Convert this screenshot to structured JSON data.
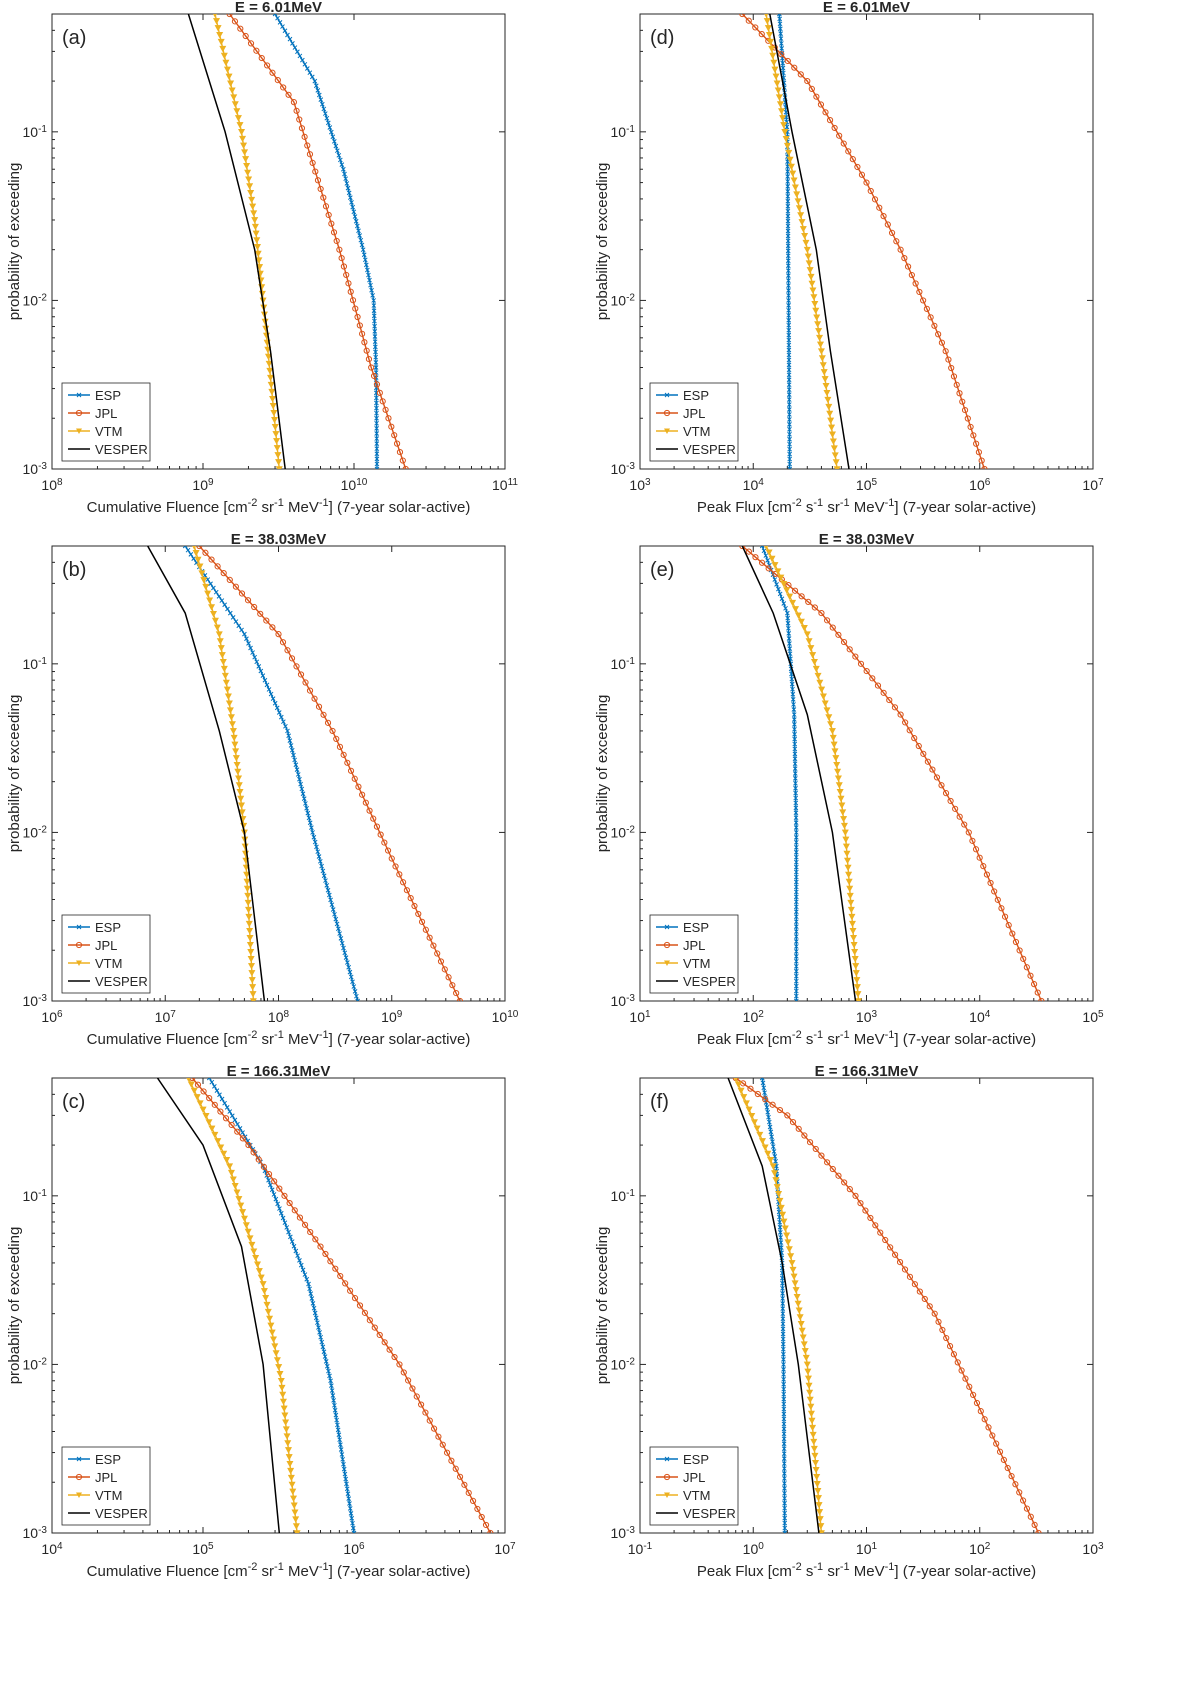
{
  "figure": {
    "ylabel": "probability of exceeding",
    "y_ticks": [
      {
        "value": 0.001,
        "base": "10",
        "exp": "-3"
      },
      {
        "value": 0.01,
        "base": "10",
        "exp": "-2"
      },
      {
        "value": 0.1,
        "base": "10",
        "exp": "-1"
      }
    ],
    "legend": [
      "ESP",
      "JPL",
      "VTM",
      "VESPER"
    ],
    "colors": {
      "ESP": "#0072bd",
      "JPL": "#d95319",
      "VTM": "#edb120",
      "VESPER": "#000000"
    },
    "xlabel_fluence": {
      "pre": "Cumulative Fluence [cm",
      "sup1": "-2",
      "mid1": " sr",
      "sup2": "-1",
      "mid2": " MeV",
      "sup3": "-1",
      "post": "] (7-year solar-active)"
    },
    "xlabel_flux": {
      "pre": "Peak Flux [cm",
      "sup1": "-2",
      "mid1": " s",
      "sup2": "-1",
      "mid2": " sr",
      "sup3": "-1",
      "mid3": " MeV",
      "sup4": "-1",
      "post": "] (7-year solar-active)"
    }
  },
  "chart_data": [
    {
      "type": "line",
      "panel": "(a)",
      "title": "E = 6.01MeV",
      "xlabel_kind": "fluence",
      "xlim_exp": [
        8,
        11
      ],
      "ylim": [
        0.001,
        0.5
      ],
      "series": [
        {
          "name": "ESP",
          "points": [
            [
              3000000000.0,
              0.5
            ],
            [
              5500000000.0,
              0.2
            ],
            [
              8500000000.0,
              0.06
            ],
            [
              11500000000.0,
              0.02
            ],
            [
              13500000000.0,
              0.01
            ],
            [
              14000000000.0,
              0.004
            ],
            [
              14200000000.0,
              0.001
            ]
          ]
        },
        {
          "name": "JPL",
          "points": [
            [
              1500000000.0,
              0.5
            ],
            [
              4000000000.0,
              0.15
            ],
            [
              8000000000.0,
              0.02
            ],
            [
              13000000000.0,
              0.004
            ],
            [
              22000000000.0,
              0.001
            ]
          ]
        },
        {
          "name": "VTM",
          "points": [
            [
              1200000000.0,
              0.5
            ],
            [
              1800000000.0,
              0.1
            ],
            [
              2200000000.0,
              0.03
            ],
            [
              2500000000.0,
              0.01
            ],
            [
              3200000000.0,
              0.001
            ]
          ]
        },
        {
          "name": "VESPER",
          "points": [
            [
              800000000.0,
              0.5
            ],
            [
              1400000000.0,
              0.1
            ],
            [
              2200000000.0,
              0.02
            ],
            [
              2800000000.0,
              0.005
            ],
            [
              3500000000.0,
              0.001
            ]
          ]
        }
      ]
    },
    {
      "type": "line",
      "panel": "(d)",
      "title": "E = 6.01MeV",
      "xlabel_kind": "flux",
      "xlim_exp": [
        3,
        7
      ],
      "ylim": [
        0.001,
        0.5
      ],
      "series": [
        {
          "name": "ESP",
          "points": [
            [
              17000.0,
              0.5
            ],
            [
              20000.0,
              0.1
            ],
            [
              20500.0,
              0.01
            ],
            [
              21000.0,
              0.001
            ]
          ]
        },
        {
          "name": "JPL",
          "points": [
            [
              8000.0,
              0.5
            ],
            [
              30000.0,
              0.2
            ],
            [
              100000.0,
              0.05
            ],
            [
              200000.0,
              0.02
            ],
            [
              500000.0,
              0.005
            ],
            [
              1100000.0,
              0.001
            ]
          ]
        },
        {
          "name": "VTM",
          "points": [
            [
              13000.0,
              0.5
            ],
            [
              19000.0,
              0.1
            ],
            [
              30000.0,
              0.02
            ],
            [
              40000.0,
              0.005
            ],
            [
              55000.0,
              0.001
            ]
          ]
        },
        {
          "name": "VESPER",
          "points": [
            [
              14000.0,
              0.5
            ],
            [
              22000.0,
              0.1
            ],
            [
              36000.0,
              0.02
            ],
            [
              48000.0,
              0.005
            ],
            [
              70000.0,
              0.001
            ]
          ]
        }
      ]
    },
    {
      "type": "line",
      "panel": "(b)",
      "title": "E = 38.03MeV",
      "xlabel_kind": "fluence",
      "xlim_exp": [
        6,
        10
      ],
      "ylim": [
        0.001,
        0.5
      ],
      "series": [
        {
          "name": "ESP",
          "points": [
            [
              15000000.0,
              0.5
            ],
            [
              50000000.0,
              0.15
            ],
            [
              120000000.0,
              0.04
            ],
            [
              200000000.0,
              0.01
            ],
            [
              500000000.0,
              0.001
            ]
          ]
        },
        {
          "name": "JPL",
          "points": [
            [
              20000000.0,
              0.5
            ],
            [
              100000000.0,
              0.15
            ],
            [
              300000000.0,
              0.04
            ],
            [
              1000000000.0,
              0.007
            ],
            [
              4000000000.0,
              0.001
            ]
          ]
        },
        {
          "name": "VTM",
          "points": [
            [
              18000000.0,
              0.5
            ],
            [
              30000000.0,
              0.15
            ],
            [
              40000000.0,
              0.04
            ],
            [
              50000000.0,
              0.01
            ],
            [
              60000000.0,
              0.001
            ]
          ]
        },
        {
          "name": "VESPER",
          "points": [
            [
              7000000.0,
              0.5
            ],
            [
              15000000.0,
              0.2
            ],
            [
              30000000.0,
              0.04
            ],
            [
              50000000.0,
              0.01
            ],
            [
              75000000.0,
              0.001
            ]
          ]
        }
      ]
    },
    {
      "type": "line",
      "panel": "(e)",
      "title": "E = 38.03MeV",
      "xlabel_kind": "flux",
      "xlim_exp": [
        1,
        5
      ],
      "ylim": [
        0.001,
        0.5
      ],
      "series": [
        {
          "name": "ESP",
          "points": [
            [
              120.0,
              0.5
            ],
            [
              200.0,
              0.2
            ],
            [
              230.0,
              0.05
            ],
            [
              240.0,
              0.01
            ],
            [
              240.0,
              0.001
            ]
          ]
        },
        {
          "name": "JPL",
          "points": [
            [
              80,
              0.5
            ],
            [
              400.0,
              0.2
            ],
            [
              2000.0,
              0.05
            ],
            [
              8000.0,
              0.01
            ],
            [
              35000.0,
              0.001
            ]
          ]
        },
        {
          "name": "VTM",
          "points": [
            [
              130.0,
              0.5
            ],
            [
              300.0,
              0.15
            ],
            [
              500.0,
              0.04
            ],
            [
              650.0,
              0.01
            ],
            [
              850.0,
              0.001
            ]
          ]
        },
        {
          "name": "VESPER",
          "points": [
            [
              80,
              0.5
            ],
            [
              150.0,
              0.2
            ],
            [
              300.0,
              0.05
            ],
            [
              500.0,
              0.01
            ],
            [
              800.0,
              0.001
            ]
          ]
        }
      ]
    },
    {
      "type": "line",
      "panel": "(c)",
      "title": "E = 166.31MeV",
      "xlabel_kind": "fluence",
      "xlim_exp": [
        4,
        7
      ],
      "ylim": [
        0.001,
        0.5
      ],
      "series": [
        {
          "name": "ESP",
          "points": [
            [
              110000.0,
              0.5
            ],
            [
              250000.0,
              0.15
            ],
            [
              500000.0,
              0.03
            ],
            [
              700000.0,
              0.008
            ],
            [
              1000000.0,
              0.001
            ]
          ]
        },
        {
          "name": "JPL",
          "points": [
            [
              85000.0,
              0.5
            ],
            [
              200000.0,
              0.2
            ],
            [
              600000.0,
              0.05
            ],
            [
              2000000.0,
              0.01
            ],
            [
              8000000.0,
              0.001
            ]
          ]
        },
        {
          "name": "VTM",
          "points": [
            [
              80000.0,
              0.5
            ],
            [
              150000.0,
              0.15
            ],
            [
              250000.0,
              0.03
            ],
            [
              330000.0,
              0.008
            ],
            [
              420000.0,
              0.001
            ]
          ]
        },
        {
          "name": "VESPER",
          "points": [
            [
              50000.0,
              0.5
            ],
            [
              100000.0,
              0.2
            ],
            [
              180000.0,
              0.05
            ],
            [
              250000.0,
              0.01
            ],
            [
              320000.0,
              0.001
            ]
          ]
        }
      ]
    },
    {
      "type": "line",
      "panel": "(f)",
      "title": "E = 166.31MeV",
      "xlabel_kind": "flux",
      "xlim_exp": [
        -1,
        3
      ],
      "ylim": [
        0.001,
        0.5
      ],
      "series": [
        {
          "name": "ESP",
          "points": [
            [
              1.2,
              0.5
            ],
            [
              1.6,
              0.15
            ],
            [
              1.8,
              0.04
            ],
            [
              1.85,
              0.01
            ],
            [
              1.9,
              0.001
            ]
          ]
        },
        {
          "name": "JPL",
          "points": [
            [
              0.7,
              0.5
            ],
            [
              2.0,
              0.3
            ],
            [
              8.0,
              0.1
            ],
            [
              40,
              0.02
            ],
            [
              330.0,
              0.001
            ]
          ]
        },
        {
          "name": "VTM",
          "points": [
            [
              0.7,
              0.5
            ],
            [
              1.5,
              0.15
            ],
            [
              2.2,
              0.04
            ],
            [
              3.0,
              0.01
            ],
            [
              4.0,
              0.001
            ]
          ]
        },
        {
          "name": "VESPER",
          "points": [
            [
              0.6,
              0.5
            ],
            [
              1.2,
              0.15
            ],
            [
              1.8,
              0.04
            ],
            [
              2.5,
              0.01
            ],
            [
              3.8,
              0.001
            ]
          ]
        }
      ]
    }
  ]
}
